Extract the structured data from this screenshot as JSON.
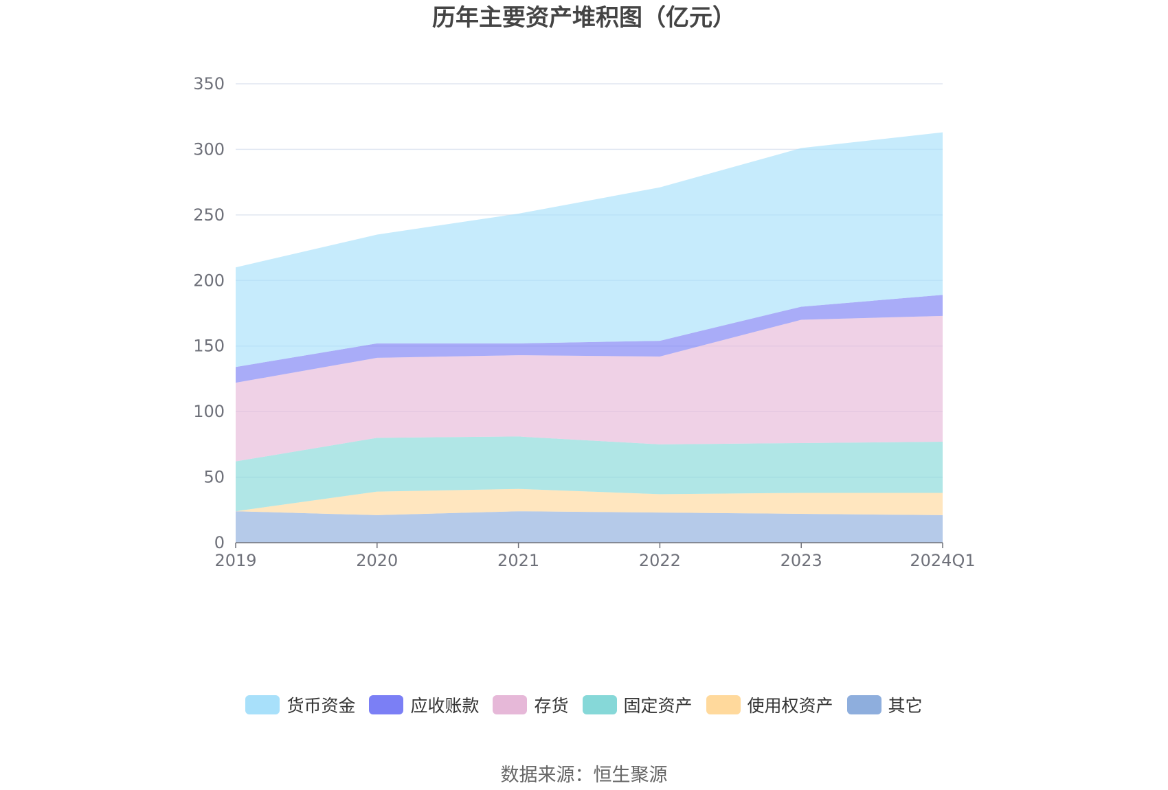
{
  "title": "历年主要资产堆积图（亿元）",
  "source": "数据来源：恒生聚源",
  "colors": {
    "货币资金": "#a8e0fa",
    "应收账款": "#7b7ff5",
    "存货": "#e6b8d8",
    "固定资产": "#86d8d8",
    "使用权资产": "#ffd99c",
    "其它": "#8eaedd"
  },
  "chart_data": {
    "type": "area",
    "stacked": true,
    "title": "历年主要资产堆积图（亿元）",
    "categories": [
      "2019",
      "2020",
      "2021",
      "2022",
      "2023",
      "2024Q1"
    ],
    "ylim": [
      0,
      350
    ],
    "yticks": [
      0,
      50,
      100,
      150,
      200,
      250,
      300,
      350
    ],
    "grid": true,
    "legend_position": "bottom",
    "series": [
      {
        "name": "其它",
        "values": [
          24,
          21,
          24,
          23,
          22,
          21
        ]
      },
      {
        "name": "使用权资产",
        "values": [
          0,
          18,
          17,
          14,
          16,
          17
        ]
      },
      {
        "name": "固定资产",
        "values": [
          38,
          41,
          40,
          38,
          38,
          39
        ]
      },
      {
        "name": "存货",
        "values": [
          60,
          61,
          62,
          67,
          94,
          96
        ]
      },
      {
        "name": "应收账款",
        "values": [
          12,
          11,
          9,
          12,
          10,
          16
        ]
      },
      {
        "name": "货币资金",
        "values": [
          76,
          83,
          99,
          117,
          121,
          124
        ]
      }
    ]
  },
  "legend": [
    {
      "name": "货币资金"
    },
    {
      "name": "应收账款"
    },
    {
      "name": "存货"
    },
    {
      "name": "固定资产"
    },
    {
      "name": "使用权资产"
    },
    {
      "name": "其它"
    }
  ]
}
